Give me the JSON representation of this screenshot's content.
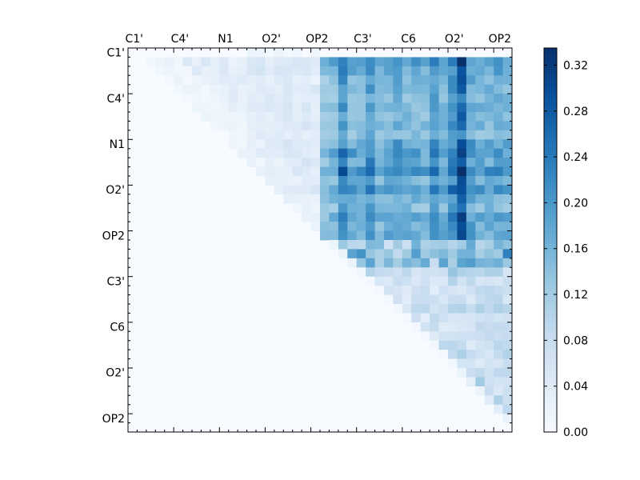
{
  "chart_data": {
    "type": "heatmap",
    "title": "",
    "xlabel": "",
    "ylabel": "",
    "x_tick_labels": [
      "C1'",
      "C4'",
      "N1",
      "O2'",
      "OP2",
      "C3'",
      "C6",
      "O2'",
      "OP2"
    ],
    "y_tick_labels": [
      "C1'",
      "C4'",
      "N1",
      "O2'",
      "OP2",
      "C3'",
      "C6",
      "O2'",
      "OP2"
    ],
    "n": 42,
    "colormap": "Blues",
    "vmin": 0.0,
    "vmax": 0.335,
    "colorbar_ticks": [
      "0.00",
      "0.04",
      "0.08",
      "0.12",
      "0.16",
      "0.20",
      "0.24",
      "0.28",
      "0.32"
    ],
    "grid": false,
    "layout": "upper-triangular (row <= col)",
    "column_profile": [
      0,
      0.03,
      0.06,
      0.04,
      0.03,
      0.05,
      0.04,
      0.05,
      0.04,
      0.04,
      0.04,
      0.04,
      0.04,
      0.06,
      0.05,
      0.03,
      0.05,
      0.07,
      0.06,
      0.07,
      0.06,
      0.14,
      0.16,
      0.22,
      0.17,
      0.17,
      0.21,
      0.16,
      0.17,
      0.19,
      0.17,
      0.17,
      0.16,
      0.21,
      0.17,
      0.22,
      0.29,
      0.19,
      0.17,
      0.17,
      0.18,
      0.17
    ],
    "row_profile": [
      0,
      1.1,
      1.0,
      0.9,
      0.9,
      0.85,
      0.9,
      0.85,
      0.9,
      0.8,
      1.0,
      1.1,
      1.0,
      1.2,
      0.95,
      1.15,
      0.9,
      0.85,
      1.0,
      0.95,
      1.0,
      1.05,
      1.3,
      1.15,
      0.7,
      0.5,
      0.5,
      0.55,
      0.6,
      0.55,
      0.55,
      0.5,
      0.6,
      0.55,
      0.5,
      0.55,
      0.6,
      0.5,
      0.6,
      0.55,
      0.5,
      0.5
    ]
  }
}
